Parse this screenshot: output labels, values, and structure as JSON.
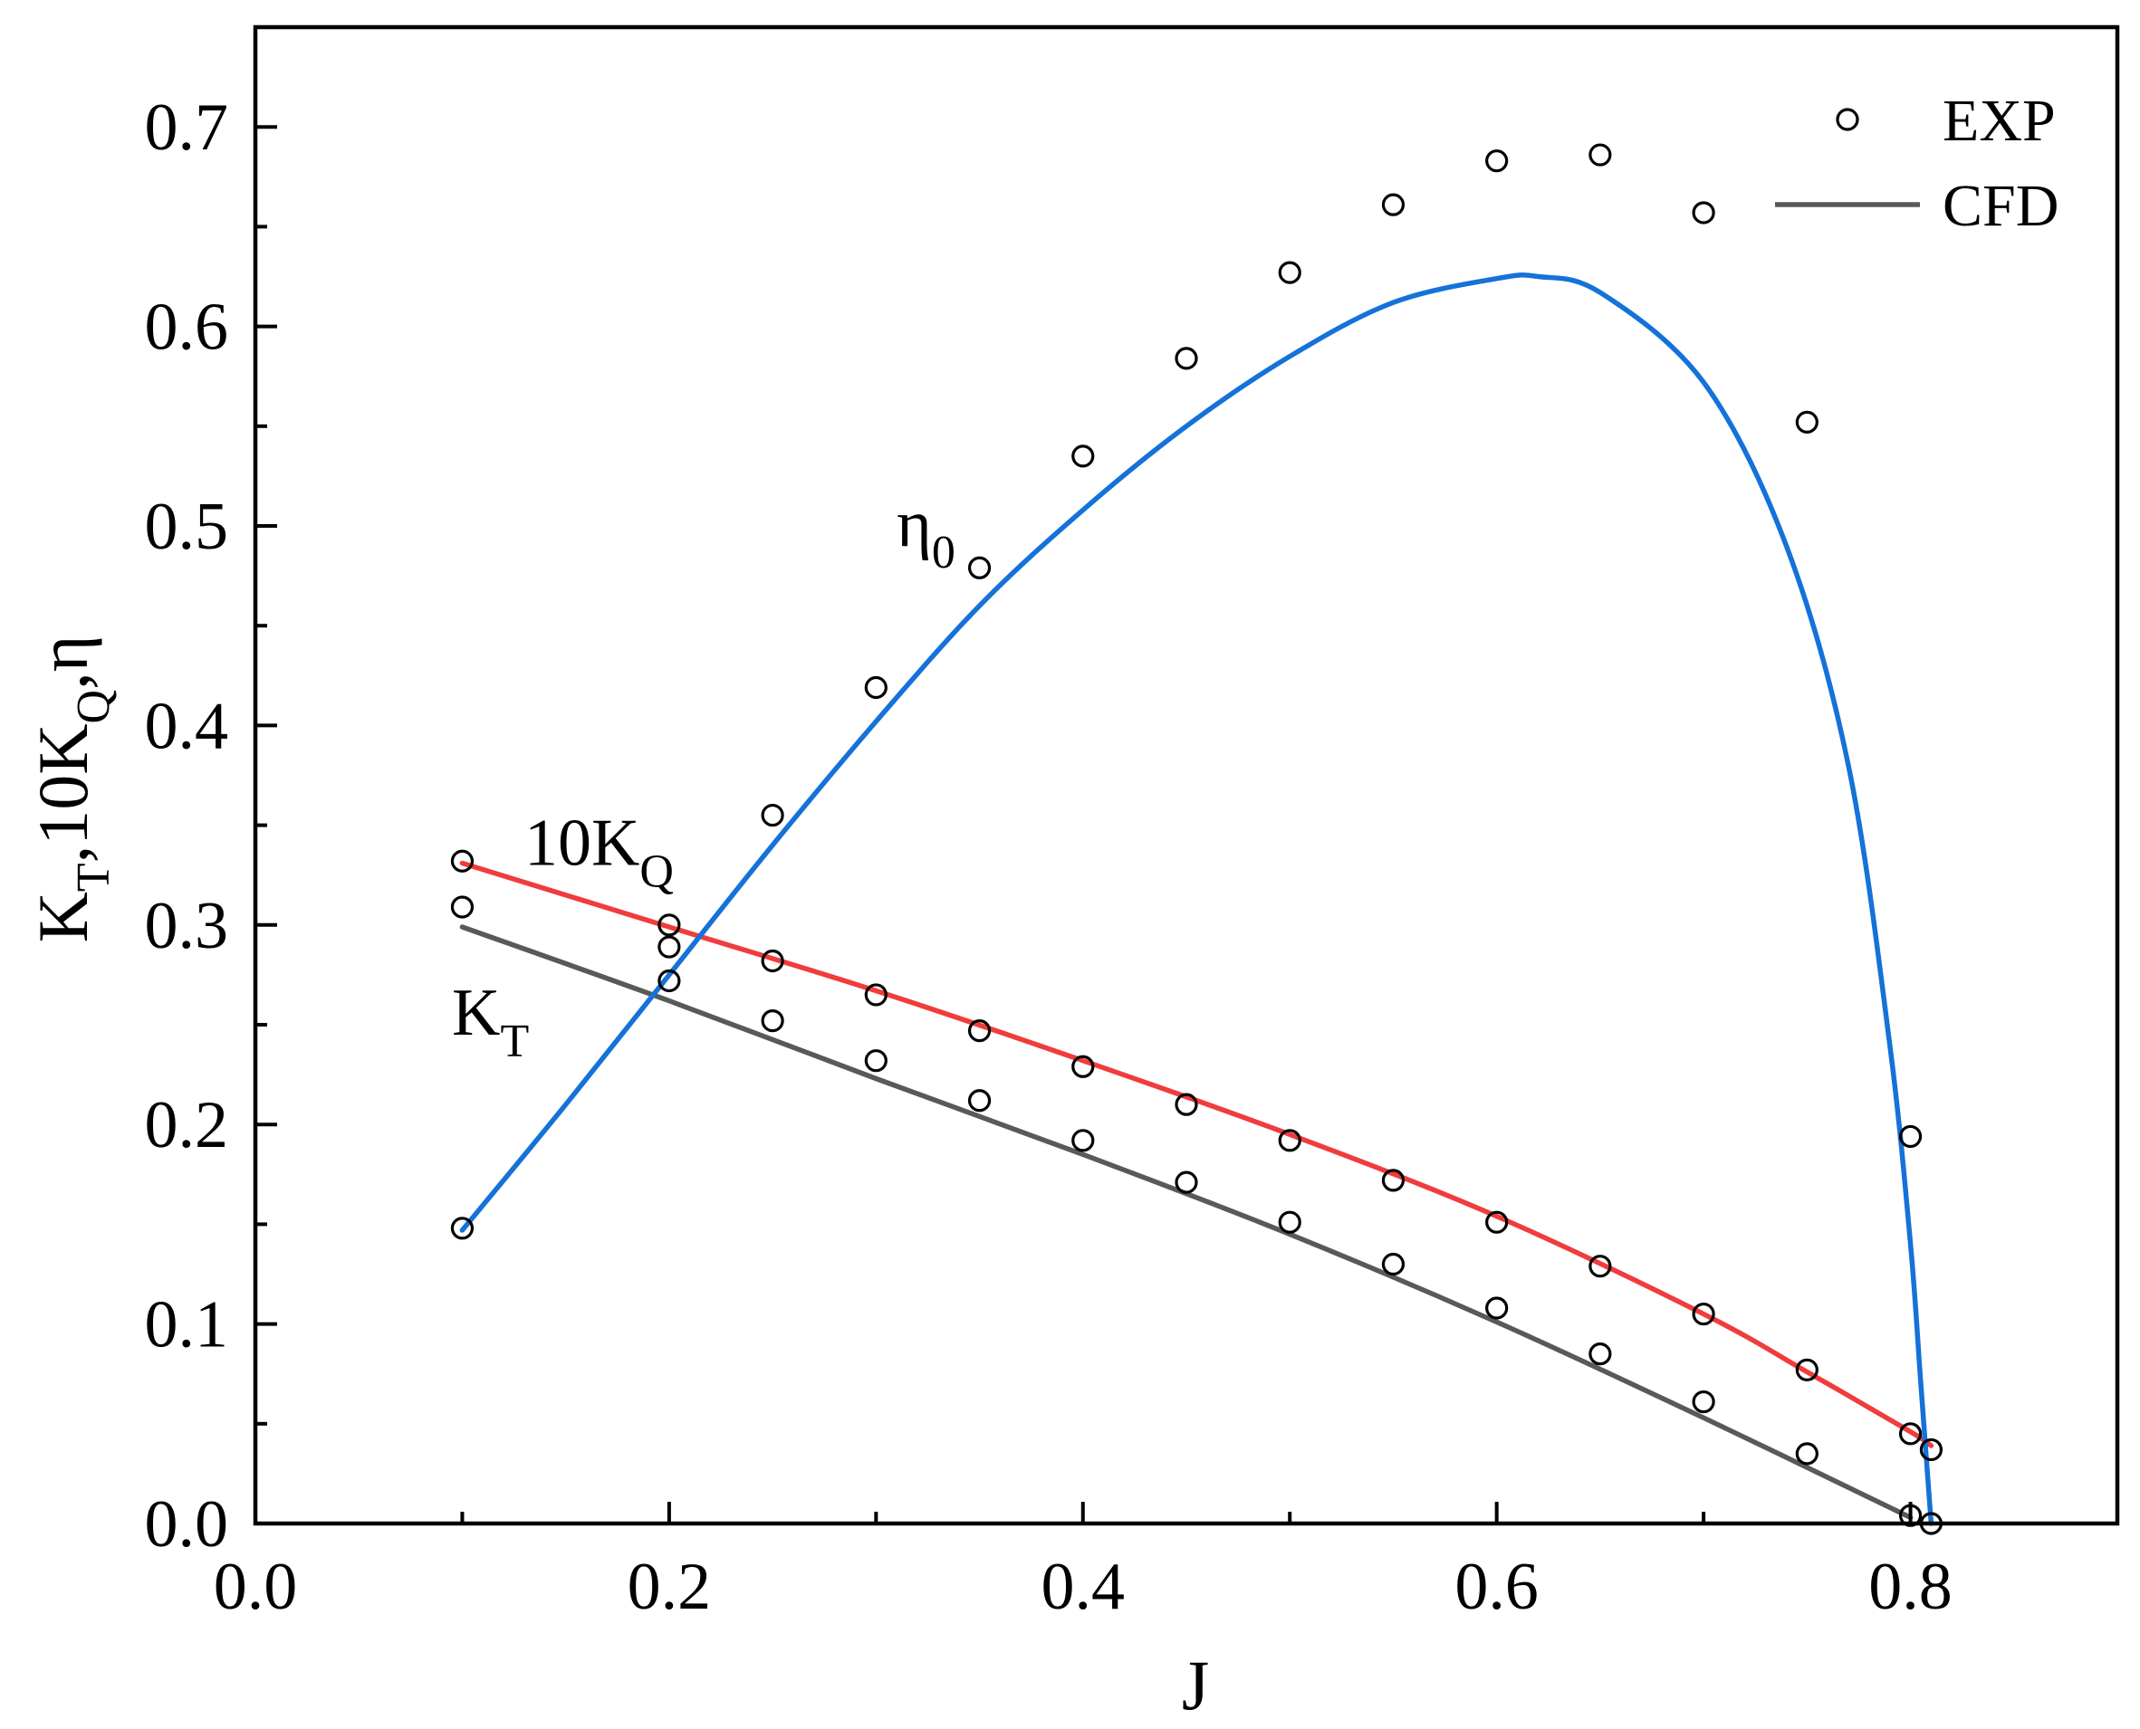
{
  "chart_data": {
    "type": "line",
    "title": "",
    "xlabel": "J",
    "ylabel": {
      "parts": [
        {
          "text": "K",
          "sub": false
        },
        {
          "text": "T",
          "sub": true
        },
        {
          "text": ",10K",
          "sub": false
        },
        {
          "text": "Q",
          "sub": true
        },
        {
          "text": ",η",
          "sub": false
        }
      ]
    },
    "xlim": [
      0.0,
      0.9
    ],
    "ylim": [
      0.0,
      0.75
    ],
    "x_ticks": [
      0.0,
      0.2,
      0.4,
      0.6,
      0.8
    ],
    "x_tick_labels": [
      "0.0",
      "0.2",
      "0.4",
      "0.6",
      "0.8"
    ],
    "y_ticks": [
      0.0,
      0.1,
      0.2,
      0.3,
      0.4,
      0.5,
      0.6,
      0.7
    ],
    "y_tick_labels": [
      "0.0",
      "0.1",
      "0.2",
      "0.3",
      "0.4",
      "0.5",
      "0.6",
      "0.7"
    ],
    "grid": false,
    "legend": {
      "position": "top-right",
      "entries": [
        {
          "label": "EXP",
          "marker": "open-circle"
        },
        {
          "label": "CFD",
          "marker": "line"
        }
      ]
    },
    "curve_labels": [
      {
        "series": "kt",
        "parts": [
          {
            "text": "K",
            "sub": false
          },
          {
            "text": "T",
            "sub": true
          }
        ],
        "x": 0.095,
        "y": 0.245
      },
      {
        "series": "kq10",
        "parts": [
          {
            "text": "10K",
            "sub": false
          },
          {
            "text": "Q",
            "sub": true
          }
        ],
        "x": 0.13,
        "y": 0.33
      },
      {
        "series": "eta",
        "parts": [
          {
            "text": "η",
            "sub": false
          },
          {
            "text": "0",
            "sub": true
          }
        ],
        "x": 0.31,
        "y": 0.49
      }
    ],
    "series": [
      {
        "id": "kt",
        "name": "KT CFD",
        "kind": "line",
        "color": "#595959",
        "x": [
          0.1,
          0.2,
          0.3,
          0.4,
          0.5,
          0.6,
          0.7,
          0.8
        ],
        "y": [
          0.299,
          0.262,
          0.223,
          0.185,
          0.145,
          0.101,
          0.053,
          0.003
        ]
      },
      {
        "id": "kq10",
        "name": "10KQ CFD",
        "kind": "line",
        "color": "#f03c3c",
        "x": [
          0.1,
          0.2,
          0.3,
          0.4,
          0.5,
          0.6,
          0.7,
          0.75,
          0.8,
          0.81
        ],
        "y": [
          0.331,
          0.299,
          0.267,
          0.232,
          0.195,
          0.154,
          0.105,
          0.076,
          0.046,
          0.039
        ]
      },
      {
        "id": "eta",
        "name": "η0 CFD",
        "kind": "line",
        "color": "#1472d9",
        "x": [
          0.1,
          0.15,
          0.2,
          0.25,
          0.3,
          0.35,
          0.4,
          0.45,
          0.5,
          0.55,
          0.6,
          0.62,
          0.65,
          0.7,
          0.74,
          0.77,
          0.79,
          0.8,
          0.805,
          0.81
        ],
        "y": [
          0.147,
          0.21,
          0.275,
          0.34,
          0.402,
          0.46,
          0.508,
          0.55,
          0.585,
          0.612,
          0.624,
          0.625,
          0.617,
          0.572,
          0.49,
          0.38,
          0.24,
          0.14,
          0.07,
          0.0
        ]
      },
      {
        "id": "kt_exp",
        "name": "KT EXP",
        "kind": "scatter",
        "color": "#000000",
        "x": [
          0.1,
          0.2,
          0.25,
          0.3,
          0.35,
          0.4,
          0.45,
          0.5,
          0.55,
          0.6,
          0.65,
          0.7,
          0.75,
          0.8
        ],
        "y": [
          0.309,
          0.272,
          0.252,
          0.232,
          0.212,
          0.192,
          0.171,
          0.151,
          0.13,
          0.108,
          0.085,
          0.061,
          0.035,
          0.004
        ]
      },
      {
        "id": "kq10_exp",
        "name": "10KQ EXP",
        "kind": "scatter",
        "color": "#000000",
        "x": [
          0.1,
          0.2,
          0.2,
          0.25,
          0.3,
          0.35,
          0.4,
          0.45,
          0.5,
          0.55,
          0.6,
          0.65,
          0.7,
          0.75,
          0.8,
          0.81
        ],
        "y": [
          0.332,
          0.3,
          0.289,
          0.282,
          0.265,
          0.247,
          0.229,
          0.21,
          0.192,
          0.172,
          0.151,
          0.129,
          0.105,
          0.077,
          0.045,
          0.037
        ]
      },
      {
        "id": "eta_exp",
        "name": "η0 EXP",
        "kind": "scatter",
        "color": "#000000",
        "x": [
          0.1,
          0.25,
          0.3,
          0.35,
          0.4,
          0.45,
          0.5,
          0.55,
          0.6,
          0.65,
          0.7,
          0.75,
          0.8,
          0.81
        ],
        "y": [
          0.148,
          0.355,
          0.419,
          0.479,
          0.535,
          0.584,
          0.627,
          0.661,
          0.683,
          0.686,
          0.657,
          0.552,
          0.194,
          0.0
        ]
      }
    ]
  }
}
